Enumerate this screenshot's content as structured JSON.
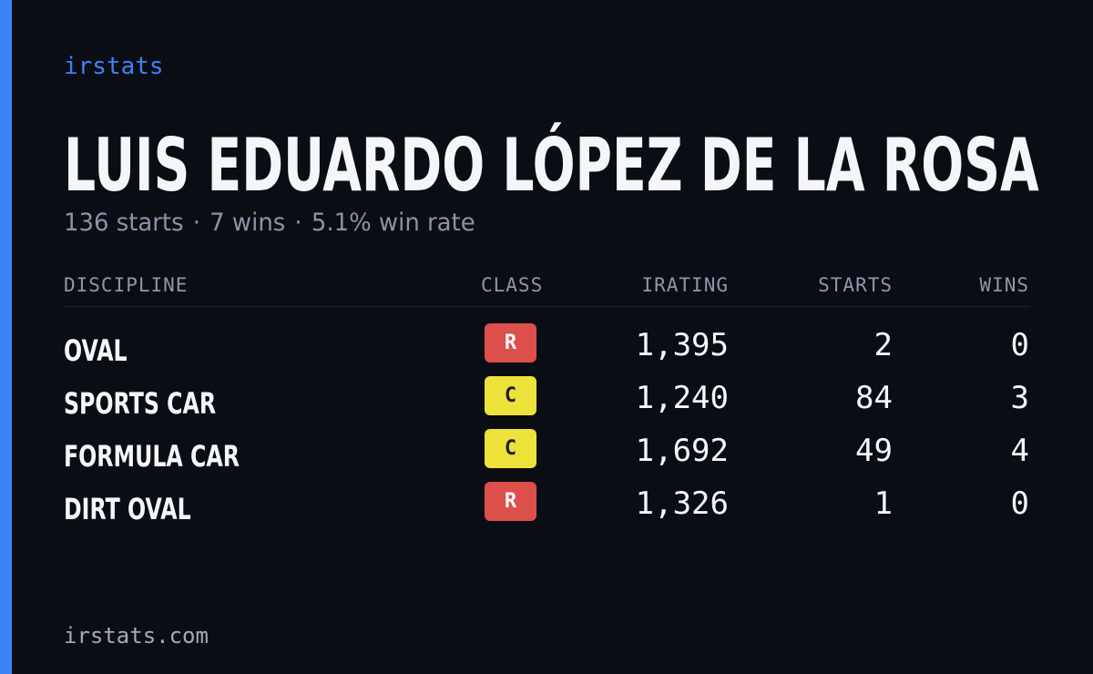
{
  "brand": "irstats",
  "driver": {
    "name": "LUIS EDUARDO LÓPEZ DE LA ROSA",
    "summary": {
      "starts": "136 starts",
      "wins": "7 wins",
      "win_rate": "5.1% win rate",
      "separator": "·"
    }
  },
  "table": {
    "headers": {
      "discipline": "DISCIPLINE",
      "class": "CLASS",
      "irating": "IRATING",
      "starts": "STARTS",
      "wins": "WINS"
    },
    "rows": [
      {
        "discipline": "OVAL",
        "class": "R",
        "irating": "1,395",
        "starts": "2",
        "wins": "0"
      },
      {
        "discipline": "SPORTS CAR",
        "class": "C",
        "irating": "1,240",
        "starts": "84",
        "wins": "3"
      },
      {
        "discipline": "FORMULA CAR",
        "class": "C",
        "irating": "1,692",
        "starts": "49",
        "wins": "4"
      },
      {
        "discipline": "DIRT OVAL",
        "class": "R",
        "irating": "1,326",
        "starts": "1",
        "wins": "0"
      }
    ]
  },
  "footer": "irstats.com",
  "colors": {
    "background": "#0b0d14",
    "accent": "#3b82f6",
    "class_r": "#dc4f4b",
    "class_c": "#ede23a"
  }
}
